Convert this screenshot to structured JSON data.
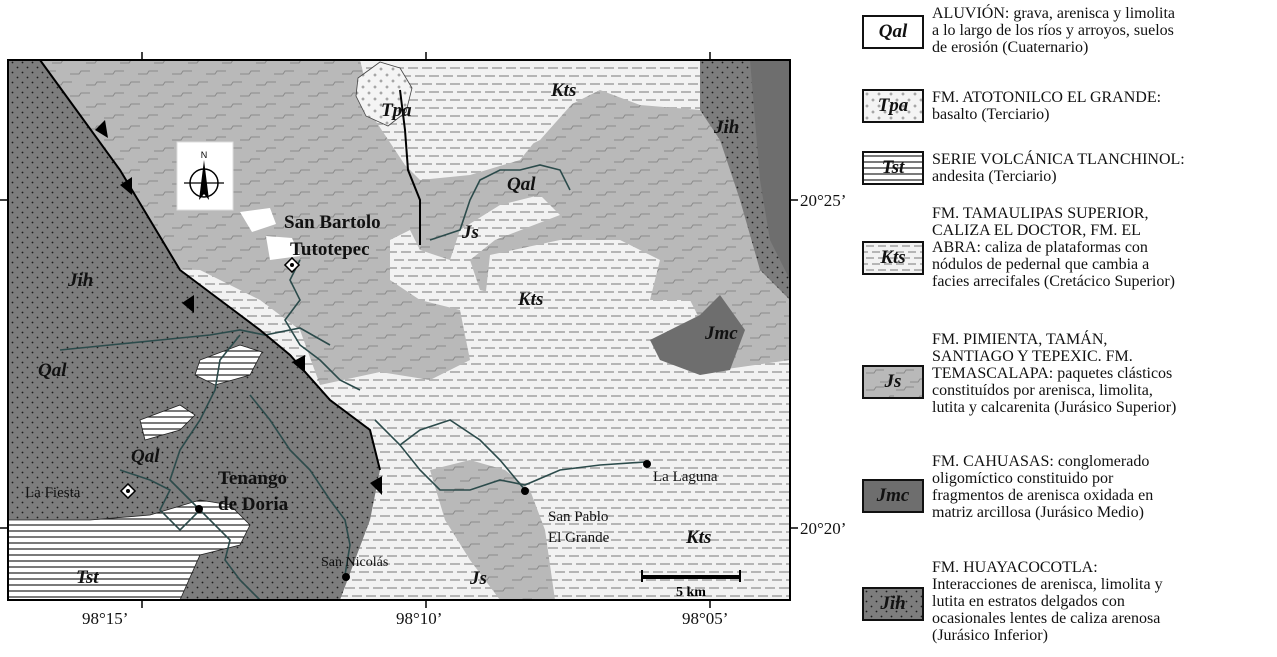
{
  "map": {
    "units": {
      "qal": "Qal",
      "tpa": "Tpa",
      "tst": "Tst",
      "kts": "Kts",
      "js": "Js",
      "jmc": "Jmc",
      "jih": "Jih"
    },
    "places": {
      "san_bartolo_1": "San Bartolo",
      "san_bartolo_2": "Tutotepec",
      "tenango_1": "Tenango",
      "tenango_2": "de Doria",
      "la_fiesta": "La Fiesta",
      "la_laguna": "La Laguna",
      "san_pablo_1": "San Pablo",
      "san_pablo_2": "El Grande",
      "san_nicolas": "San Nicolás"
    },
    "north": "N",
    "scale_label": "5 km",
    "lon_ticks": [
      "98°15’",
      "98°10’",
      "98°05’"
    ],
    "lat_ticks": [
      "20°25’",
      "20°20’"
    ]
  },
  "legend": [
    {
      "code": "Qal",
      "lines": [
        "ALUVIÓN: grava, arenisca y limolita",
        "a lo largo de los ríos y arroyos, suelos",
        "de erosión (Cuaternario)"
      ]
    },
    {
      "code": "Tpa",
      "lines": [
        "FM. ATOTONILCO EL GRANDE:",
        "basalto (Terciario)"
      ]
    },
    {
      "code": "Tst",
      "lines": [
        "SERIE VOLCÁNICA TLANCHINOL:",
        "andesita (Terciario)"
      ]
    },
    {
      "code": "Kts",
      "lines": [
        "FM. TAMAULIPAS SUPERIOR,",
        "CALIZA EL DOCTOR, FM. EL",
        "ABRA: caliza de plataformas con",
        "nódulos de pedernal que cambia a",
        "facies arrecifales (Cretácico Superior)"
      ]
    },
    {
      "code": "Js",
      "lines": [
        "FM. PIMIENTA, TAMÁN,",
        "SANTIAGO Y TEPEXIC. FM.",
        "TEMASCALAPA: paquetes clásticos",
        "constituídos por arenisca, limolita,",
        "lutita y calcarenita (Jurásico Superior)"
      ]
    },
    {
      "code": "Jmc",
      "lines": [
        "FM. CAHUASAS: conglomerado",
        "oligomíctico constituido por",
        "fragmentos de arenisca oxidada en",
        "matriz arcillosa (Jurásico Medio)"
      ]
    },
    {
      "code": "Jih",
      "lines": [
        "FM. HUAYACOCOTLA:",
        "Interacciones de arenisca, limolita y",
        "lutita en estratos delgados con",
        "ocasionales lentes de caliza arenosa",
        "(Jurásico Inferior)"
      ]
    }
  ]
}
